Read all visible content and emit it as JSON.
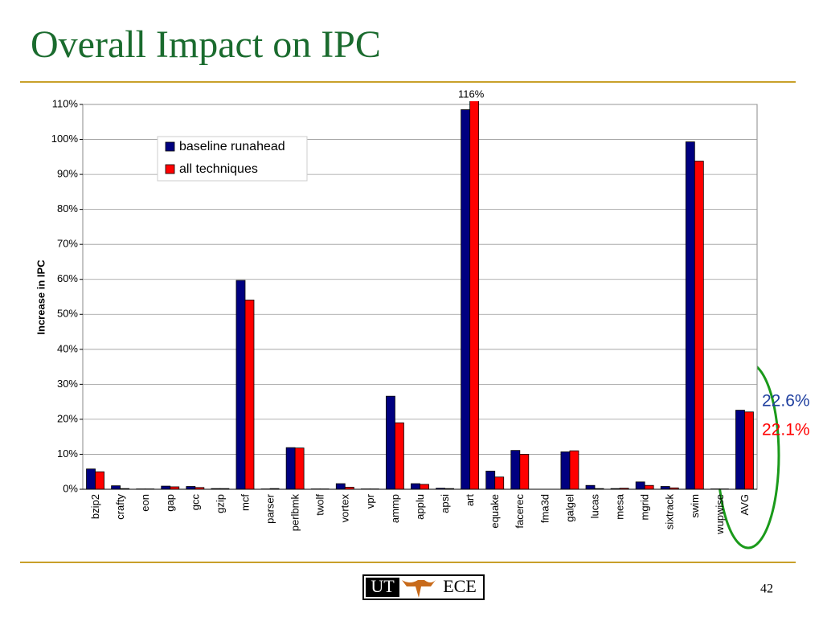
{
  "slide": {
    "title": "Overall Impact on IPC",
    "page_number": "42",
    "logo": [
      "UT",
      "ECE"
    ]
  },
  "chart_data": {
    "type": "bar",
    "y_label": "Increase in IPC",
    "categories": [
      "bzip2",
      "crafty",
      "eon",
      "gap",
      "gcc",
      "gzip",
      "mcf",
      "parser",
      "perlbmk",
      "twolf",
      "vortex",
      "vpr",
      "ammp",
      "applu",
      "apsi",
      "art",
      "equake",
      "facerec",
      "fma3d",
      "galgel",
      "lucas",
      "mesa",
      "mgrid",
      "sixtrack",
      "swim",
      "wupwise",
      "AVG"
    ],
    "series": [
      {
        "name": "baseline runahead",
        "color": "#000080",
        "values": [
          5.8,
          1,
          0.1,
          0.9,
          0.8,
          0.2,
          59.7,
          0.1,
          11.9,
          0.1,
          1.6,
          0.1,
          26.6,
          1.6,
          0.3,
          108.5,
          5.2,
          11.1,
          0,
          10.7,
          1.1,
          0.2,
          2.1,
          0.8,
          99.3,
          0.1,
          22.6
        ],
        "value_labels": [
          null,
          null,
          null,
          null,
          null,
          null,
          null,
          null,
          null,
          null,
          null,
          null,
          null,
          null,
          null,
          null,
          null,
          null,
          null,
          null,
          null,
          null,
          null,
          null,
          null,
          null,
          "22.6%"
        ],
        "label_color": "#1f3f9f"
      },
      {
        "name": "all techniques",
        "color": "#ff0000",
        "values": [
          5,
          0.2,
          0.1,
          0.7,
          0.5,
          0.2,
          54.1,
          0.2,
          11.8,
          0.1,
          0.6,
          0.1,
          19,
          1.4,
          0.2,
          116,
          3.5,
          10,
          0,
          11,
          0.2,
          0.3,
          1.1,
          0.4,
          93.8,
          0.1,
          22.1
        ],
        "value_labels": [
          null,
          null,
          null,
          null,
          null,
          null,
          null,
          null,
          null,
          null,
          null,
          null,
          null,
          null,
          null,
          "116%",
          null,
          null,
          null,
          null,
          null,
          null,
          null,
          null,
          null,
          null,
          "22.1%"
        ],
        "label_color": "#ff0000"
      }
    ],
    "ylim": [
      0,
      110
    ],
    "yticks": [
      {
        "value": 0,
        "label": "0%"
      },
      {
        "value": 10,
        "label": "10%"
      },
      {
        "value": 20,
        "label": "20%"
      },
      {
        "value": 30,
        "label": "30%"
      },
      {
        "value": 40,
        "label": "40%"
      },
      {
        "value": 50,
        "label": "50%"
      },
      {
        "value": 60,
        "label": "60%"
      },
      {
        "value": 70,
        "label": "70%"
      },
      {
        "value": 80,
        "label": "80%"
      },
      {
        "value": 90,
        "label": "90%"
      },
      {
        "value": 100,
        "label": "100%"
      },
      {
        "value": 110,
        "label": "110%"
      }
    ],
    "grid": true,
    "legend": "upper left"
  }
}
